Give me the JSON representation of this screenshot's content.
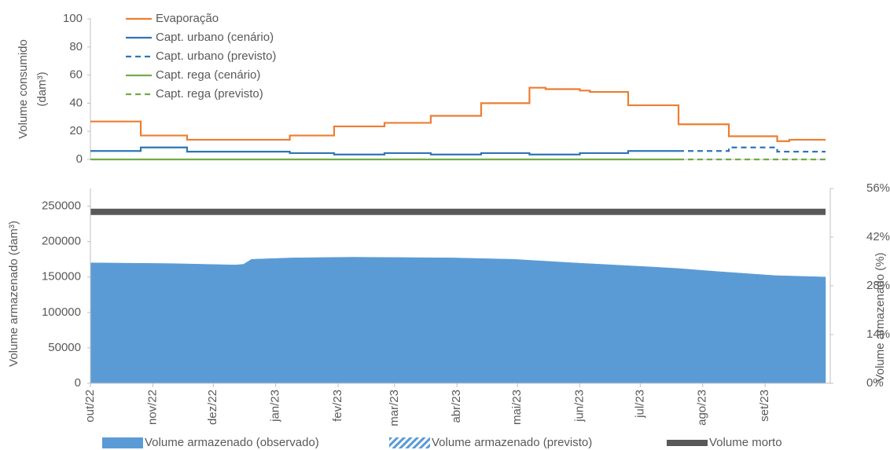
{
  "chart_data": [
    {
      "type": "line",
      "ylabel": [
        "Volume consumido",
        "(dam³)"
      ],
      "xlim": [
        0,
        365
      ],
      "ylim": [
        0,
        100
      ],
      "yticks": [
        0,
        20,
        40,
        60,
        80,
        100
      ],
      "legend": "upper left",
      "series": [
        {
          "name": "Evaporação",
          "color": "#ed7d31",
          "style": "solid",
          "x": [
            0,
            25,
            25,
            48,
            48,
            99,
            99,
            121,
            121,
            146,
            146,
            169,
            169,
            194,
            194,
            218,
            218,
            226,
            226,
            243,
            243,
            248,
            248,
            267,
            267,
            292,
            292,
            317,
            317,
            341,
            341,
            347,
            347,
            365
          ],
          "values": [
            27,
            27,
            17,
            17,
            14,
            14,
            17,
            17,
            23.5,
            23.5,
            26,
            26,
            31,
            31,
            40,
            40,
            51,
            51,
            50,
            50,
            49,
            49,
            48,
            48,
            38.5,
            38.5,
            25,
            25,
            16.5,
            16.5,
            13,
            13,
            14,
            14
          ]
        },
        {
          "name": "Capt. urbano (cenário)",
          "color": "#2e75b6",
          "style": "solid",
          "x": [
            0,
            25,
            25,
            48,
            48,
            99,
            99,
            121,
            121,
            146,
            146,
            169,
            169,
            194,
            194,
            218,
            218,
            243,
            243,
            267,
            267,
            292
          ],
          "values": [
            6,
            6,
            8.5,
            8.5,
            5.5,
            5.5,
            4.5,
            4.5,
            3.5,
            3.5,
            4.5,
            4.5,
            3.5,
            3.5,
            4.5,
            4.5,
            3.5,
            3.5,
            4.5,
            4.5,
            6,
            6
          ]
        },
        {
          "name": "Capt. urbano (previsto)",
          "color": "#2e75b6",
          "style": "dashed",
          "x": [
            292,
            317,
            317,
            341,
            341,
            365
          ],
          "values": [
            6,
            6,
            8.5,
            8.5,
            5.5,
            5.5
          ]
        },
        {
          "name": "Capt. rega (cenário)",
          "color": "#70ad47",
          "style": "solid",
          "x": [
            0,
            292
          ],
          "values": [
            0,
            0
          ]
        },
        {
          "name": "Capt. rega (previsto)",
          "color": "#70ad47",
          "style": "dashed",
          "x": [
            292,
            365
          ],
          "values": [
            0,
            0
          ]
        }
      ]
    },
    {
      "type": "area",
      "ylabel": "Volume armazenado (dam³)",
      "y2label": "Volume armazenado (%)",
      "xlim": [
        0,
        365
      ],
      "xticks": [
        {
          "value": 0,
          "label": "out/22"
        },
        {
          "value": 31,
          "label": "nov/22"
        },
        {
          "value": 61,
          "label": "dez/22"
        },
        {
          "value": 92,
          "label": "jan/23"
        },
        {
          "value": 123,
          "label": "fev/23"
        },
        {
          "value": 151,
          "label": "mar/23"
        },
        {
          "value": 182,
          "label": "abr/23"
        },
        {
          "value": 212,
          "label": "mai/23"
        },
        {
          "value": 243,
          "label": "jun/23"
        },
        {
          "value": 273,
          "label": "jul/23"
        },
        {
          "value": 304,
          "label": "ago/23"
        },
        {
          "value": 335,
          "label": "set/23"
        }
      ],
      "ylim": [
        0,
        275000
      ],
      "yticks": [
        0,
        50000,
        100000,
        150000,
        200000,
        250000
      ],
      "y2lim": [
        0,
        56
      ],
      "y2ticks": [
        {
          "value": 0,
          "label": "0%"
        },
        {
          "value": 14,
          "label": "14%"
        },
        {
          "value": 28,
          "label": "28%"
        },
        {
          "value": 42,
          "label": "42%"
        },
        {
          "value": 56,
          "label": "56%"
        }
      ],
      "legend": "bottom",
      "series": [
        {
          "name": "Volume armazenado (observado)",
          "color": "#5b9bd5",
          "kind": "area",
          "x": [
            0,
            40,
            72,
            76,
            80,
            100,
            130,
            180,
            210,
            240,
            280,
            292
          ],
          "values": [
            170000,
            169000,
            167000,
            168000,
            175000,
            177000,
            178000,
            177000,
            175000,
            170000,
            164000,
            162000
          ]
        },
        {
          "name": "Volume armazenado (previsto)",
          "color": "#5b9bd5",
          "kind": "area",
          "legend_style": "hatch",
          "x": [
            292,
            310,
            340,
            365
          ],
          "values": [
            162000,
            158000,
            152000,
            150000
          ]
        },
        {
          "name": "Volume morto",
          "color": "#595959",
          "kind": "line",
          "x": [
            0,
            365
          ],
          "values": [
            242000,
            242000
          ]
        }
      ]
    }
  ]
}
